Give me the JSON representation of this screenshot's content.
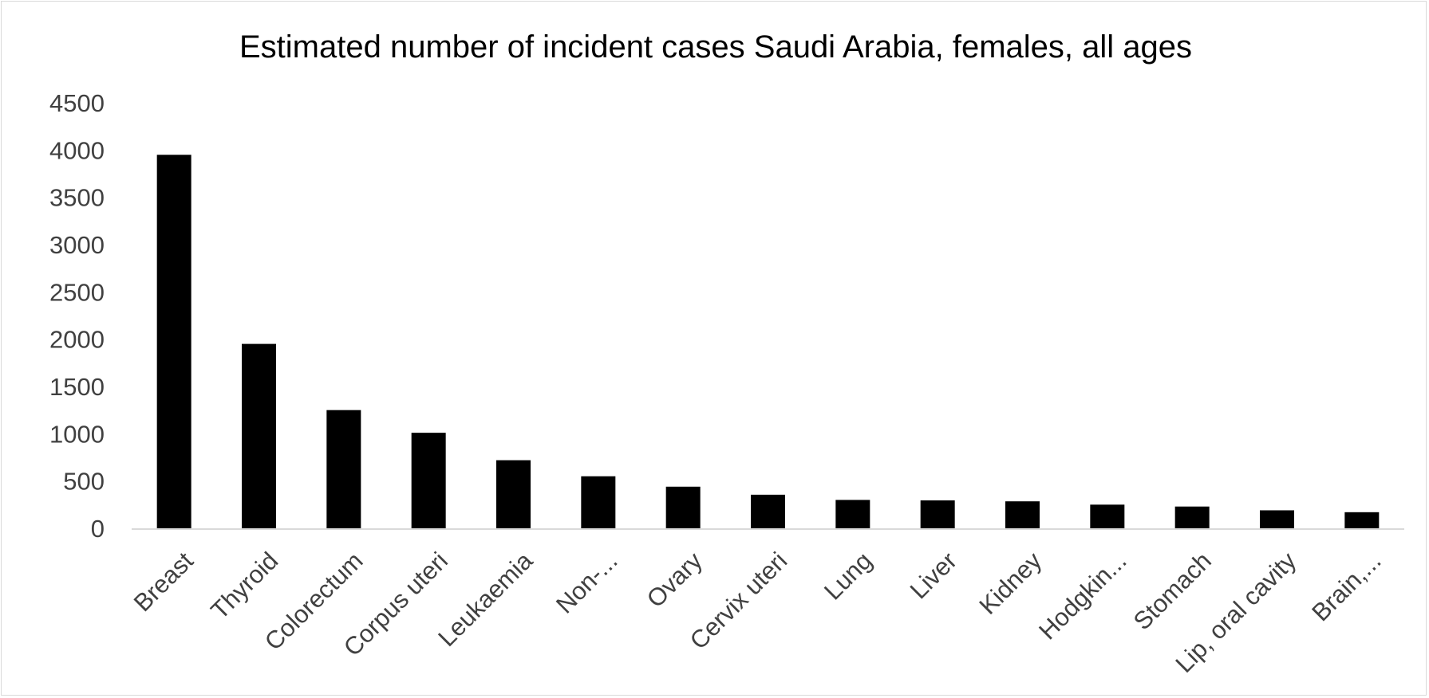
{
  "chart_data": {
    "type": "bar",
    "title": "Estimated number of incident cases Saudi Arabia, females, all ages",
    "xlabel": "",
    "ylabel": "",
    "categories": [
      "Breast",
      "Thyroid",
      "Colorectum",
      "Corpus uteri",
      "Leukaemia",
      "Non-...",
      "Ovary",
      "Cervix uteri",
      "Lung",
      "Liver",
      "Kidney",
      "Hodgkin...",
      "Stomach",
      "Lip, oral cavity",
      "Brain,..."
    ],
    "values": [
      3950,
      1950,
      1250,
      1010,
      720,
      550,
      440,
      355,
      300,
      295,
      285,
      250,
      230,
      190,
      170
    ],
    "ylim": [
      0,
      4500
    ],
    "yticks": [
      "0",
      "500",
      "1000",
      "1500",
      "2000",
      "2500",
      "3000",
      "3500",
      "4000",
      "4500"
    ],
    "grid": false,
    "legend": "none",
    "bar_color": "#000000",
    "axis_color": "#d9d9d9",
    "text_color": "#404040"
  }
}
